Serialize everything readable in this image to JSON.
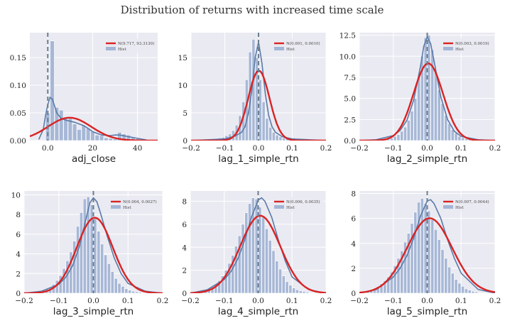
{
  "title": "Distribution of returns with increased time scale",
  "colors": {
    "panel_bg": "#eaeaf2",
    "grid": "#ffffff",
    "hist": "#a4b5d5",
    "kde": "#5a7ba8",
    "normal": "#d92323",
    "vline": "#6b7f8e"
  },
  "chart_data": [
    {
      "type": "histogram",
      "xlabel": "adj_close",
      "xlim": [
        -8,
        49
      ],
      "ylim": [
        0,
        0.195
      ],
      "xticks": [
        0,
        20,
        40
      ],
      "yticks": [
        0.0,
        0.05,
        0.1,
        0.15
      ],
      "ytick_labels": [
        "0.00",
        "0.05",
        "0.10",
        "0.15"
      ],
      "legend": [
        "N(9.717, 93.3130)",
        "Hist"
      ],
      "vline": 0,
      "normal": {
        "mean": 9.717,
        "var": 93.313
      },
      "bins": {
        "start": -1,
        "width": 2,
        "heights": [
          0.05,
          0.18,
          0.06,
          0.055,
          0.04,
          0.04,
          0.03,
          0.02,
          0.028,
          0.022,
          0.016,
          0.01,
          0.009,
          0.005,
          0.004,
          0.003,
          0.015,
          0.012,
          0.01,
          0.006,
          0.003
        ]
      },
      "kde": {
        "x": [
          -4,
          -2,
          -1,
          0,
          1,
          2,
          3,
          4,
          6,
          8,
          10,
          12,
          14,
          16,
          18,
          20,
          24,
          28,
          30,
          32,
          36,
          40,
          44
        ],
        "y": [
          0.002,
          0.02,
          0.045,
          0.065,
          0.078,
          0.075,
          0.063,
          0.05,
          0.04,
          0.037,
          0.035,
          0.033,
          0.03,
          0.027,
          0.022,
          0.016,
          0.01,
          0.009,
          0.01,
          0.01,
          0.007,
          0.004,
          0.001
        ]
      }
    },
    {
      "type": "histogram",
      "xlabel": "lag_1_simple_rtn",
      "xlim": [
        -0.2,
        0.2
      ],
      "ylim": [
        0,
        19.5
      ],
      "xticks": [
        -0.2,
        -0.1,
        0.0,
        0.1,
        0.2
      ],
      "yticks": [
        0,
        5,
        10,
        15
      ],
      "ytick_labels": [
        "0",
        "5",
        "10",
        "15"
      ],
      "legend": [
        "N(0.001, 0.0010)",
        "Hist"
      ],
      "vline": 0,
      "normal": {
        "mean": 0.001,
        "var": 0.001
      },
      "bins": {
        "start": -0.2,
        "width": 0.01,
        "heights": [
          0.05,
          0.05,
          0.1,
          0.1,
          0.15,
          0.2,
          0.3,
          0.3,
          0.5,
          0.6,
          0.9,
          1.2,
          1.8,
          2.8,
          4.5,
          7,
          11,
          16,
          18.3,
          15,
          11,
          7,
          4,
          2.4,
          1.5,
          1,
          0.7,
          0.5,
          0.35,
          0.25,
          0.2,
          0.15,
          0.1,
          0.1,
          0.08,
          0.05,
          0.05,
          0.05,
          0.03,
          0.03
        ]
      },
      "kde": {
        "x": [
          -0.2,
          -0.1,
          -0.07,
          -0.05,
          -0.04,
          -0.03,
          -0.02,
          -0.01,
          0,
          0.01,
          0.02,
          0.03,
          0.04,
          0.05,
          0.07,
          0.1,
          0.2
        ],
        "y": [
          0,
          0.3,
          0.8,
          1.5,
          2.5,
          5,
          9,
          15,
          17.8,
          14,
          8.5,
          4.5,
          2.5,
          1.5,
          0.7,
          0.3,
          0
        ]
      }
    },
    {
      "type": "histogram",
      "xlabel": "lag_2_simple_rtn",
      "xlim": [
        -0.2,
        0.2
      ],
      "ylim": [
        0,
        12.8
      ],
      "xticks": [
        -0.2,
        -0.1,
        0.0,
        0.1,
        0.2
      ],
      "yticks": [
        0,
        2.5,
        5.0,
        7.5,
        10.0,
        12.5
      ],
      "ytick_labels": [
        "0.0",
        "2.5",
        "5.0",
        "7.5",
        "10.0",
        "12.5"
      ],
      "legend": [
        "N(0.003, 0.0019)",
        "Hist"
      ],
      "vline": 0,
      "normal": {
        "mean": 0.003,
        "var": 0.0019
      },
      "bins": {
        "start": -0.15,
        "width": 0.01,
        "heights": [
          0.05,
          0.1,
          0.15,
          0.2,
          0.3,
          0.5,
          0.7,
          1.1,
          1.6,
          2.4,
          3.5,
          5,
          7.5,
          10,
          12.2,
          12.5,
          10.8,
          8.2,
          6,
          4.4,
          3,
          2,
          1.3,
          0.9,
          0.5,
          0.35,
          0.2,
          0.15,
          0.1,
          0.05
        ]
      },
      "kde": {
        "x": [
          -0.2,
          -0.15,
          -0.1,
          -0.08,
          -0.06,
          -0.04,
          -0.02,
          -0.01,
          0,
          0.01,
          0.02,
          0.04,
          0.06,
          0.08,
          0.1,
          0.15,
          0.2
        ],
        "y": [
          0,
          0.1,
          0.6,
          1.2,
          2.4,
          4.8,
          8.8,
          11.2,
          12.3,
          11.5,
          9.5,
          5.2,
          2.5,
          1.1,
          0.5,
          0.1,
          0
        ]
      }
    },
    {
      "type": "histogram",
      "xlabel": "lag_3_simple_rtn",
      "xlim": [
        -0.2,
        0.2
      ],
      "ylim": [
        0,
        10.4
      ],
      "xticks": [
        -0.2,
        -0.1,
        0.0,
        0.1,
        0.2
      ],
      "yticks": [
        0,
        2,
        4,
        6,
        8,
        10
      ],
      "ytick_labels": [
        "0",
        "2",
        "4",
        "6",
        "8",
        "10"
      ],
      "legend": [
        "N(0.004, 0.0027)",
        "Hist"
      ],
      "vline": 0,
      "normal": {
        "mean": 0.004,
        "var": 0.0027
      },
      "bins": {
        "start": -0.19,
        "width": 0.01,
        "heights": [
          0.1,
          0.15,
          0.2,
          0.25,
          0.3,
          0.45,
          0.6,
          0.9,
          1.3,
          1.8,
          2.5,
          3.3,
          4.2,
          5.3,
          6.8,
          8.2,
          9.6,
          9.8,
          9,
          7.6,
          6.3,
          5,
          3.9,
          3,
          2.2,
          1.5,
          1,
          0.7,
          0.45,
          0.3,
          0.2,
          0.15,
          0.1
        ]
      },
      "kde": {
        "x": [
          -0.2,
          -0.15,
          -0.1,
          -0.08,
          -0.06,
          -0.04,
          -0.02,
          -0.01,
          0,
          0.01,
          0.02,
          0.04,
          0.06,
          0.08,
          0.1,
          0.15,
          0.2
        ],
        "y": [
          0,
          0.2,
          0.9,
          1.6,
          2.8,
          4.8,
          7.8,
          9.2,
          9.7,
          9.3,
          8.2,
          5.8,
          3.6,
          2.0,
          1.0,
          0.2,
          0
        ]
      }
    },
    {
      "type": "histogram",
      "xlabel": "lag_4_simple_rtn",
      "xlim": [
        -0.2,
        0.2
      ],
      "ylim": [
        0,
        8.9
      ],
      "xticks": [
        -0.2,
        -0.1,
        0.0,
        0.1,
        0.2
      ],
      "yticks": [
        0,
        2,
        4,
        6,
        8
      ],
      "ytick_labels": [
        "0",
        "2",
        "4",
        "6",
        "8"
      ],
      "legend": [
        "N(0.006, 0.0035)",
        "Hist"
      ],
      "vline": 0,
      "normal": {
        "mean": 0.006,
        "var": 0.0035
      },
      "bins": {
        "start": -0.19,
        "width": 0.01,
        "heights": [
          0.1,
          0.15,
          0.2,
          0.3,
          0.4,
          0.55,
          0.8,
          1.1,
          1.5,
          2.0,
          2.6,
          3.3,
          4.1,
          5.0,
          6.0,
          7.0,
          7.8,
          8.3,
          8.2,
          7.5,
          6.6,
          5.6,
          4.6,
          3.7,
          2.8,
          2.1,
          1.5,
          1.0,
          0.7,
          0.45,
          0.3,
          0.2,
          0.15,
          0.1
        ]
      },
      "kde": {
        "x": [
          -0.2,
          -0.15,
          -0.1,
          -0.08,
          -0.06,
          -0.04,
          -0.02,
          0,
          0.01,
          0.02,
          0.04,
          0.06,
          0.08,
          0.1,
          0.15,
          0.2
        ],
        "y": [
          0,
          0.3,
          1.2,
          1.9,
          3.0,
          4.6,
          6.6,
          8.1,
          8.3,
          8.0,
          6.6,
          4.6,
          2.8,
          1.4,
          0.3,
          0
        ]
      }
    },
    {
      "type": "histogram",
      "xlabel": "lag_5_simple_rtn",
      "xlim": [
        -0.2,
        0.2
      ],
      "ylim": [
        0,
        8.2
      ],
      "xticks": [
        -0.2,
        -0.1,
        0.0,
        0.1,
        0.2
      ],
      "yticks": [
        0,
        2,
        4,
        6,
        8
      ],
      "ytick_labels": [
        "0",
        "2",
        "4",
        "6",
        "8"
      ],
      "legend": [
        "N(0.007, 0.0044)",
        "Hist"
      ],
      "vline": 0,
      "normal": {
        "mean": 0.007,
        "var": 0.0044
      },
      "bins": {
        "start": -0.19,
        "width": 0.01,
        "heights": [
          0.15,
          0.2,
          0.3,
          0.4,
          0.55,
          0.75,
          1.0,
          1.3,
          1.7,
          2.2,
          2.8,
          3.4,
          4.1,
          4.8,
          5.6,
          6.5,
          7.3,
          7.6,
          7.2,
          6.6,
          5.9,
          5.1,
          4.3,
          3.5,
          2.8,
          2.1,
          1.6,
          1.1,
          0.8,
          0.55,
          0.35,
          0.25,
          0.15,
          0.1
        ]
      },
      "kde": {
        "x": [
          -0.2,
          -0.15,
          -0.1,
          -0.08,
          -0.06,
          -0.04,
          -0.02,
          0,
          0.01,
          0.02,
          0.04,
          0.06,
          0.08,
          0.1,
          0.15,
          0.2
        ],
        "y": [
          0,
          0.3,
          1.3,
          2.0,
          3.0,
          4.4,
          6.2,
          7.4,
          7.5,
          7.2,
          6.0,
          4.3,
          2.8,
          1.6,
          0.3,
          0
        ]
      }
    }
  ]
}
